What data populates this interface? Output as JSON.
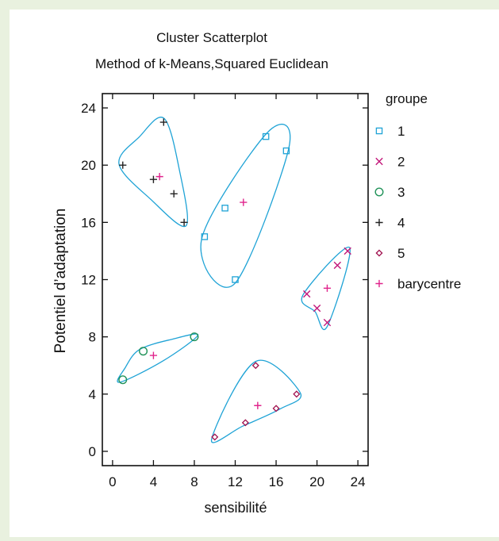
{
  "chart_data": {
    "type": "scatter",
    "title": "Cluster Scatterplot",
    "subtitle": "Method of k-Means,Squared Euclidean",
    "xlabel": "sensibilité",
    "ylabel": "Potentiel d’adaptation",
    "xlim": [
      -1,
      25
    ],
    "ylim": [
      -1,
      25
    ],
    "x_ticks": [
      "0",
      "4",
      "8",
      "12",
      "16",
      "20",
      "24"
    ],
    "y_ticks": [
      "0",
      "4",
      "8",
      "12",
      "16",
      "20",
      "24"
    ],
    "grid": false,
    "legend": {
      "title": "groupe",
      "placement": "right",
      "entries": [
        {
          "label": "1",
          "marker": "square",
          "color": "#1fa3d6"
        },
        {
          "label": "2",
          "marker": "x",
          "color": "#c2177a"
        },
        {
          "label": "3",
          "marker": "circle",
          "color": "#22935a"
        },
        {
          "label": "4",
          "marker": "plus",
          "color": "#222222"
        },
        {
          "label": "5",
          "marker": "diamond",
          "color": "#a0104e"
        },
        {
          "label": "barycentre",
          "marker": "plus",
          "color": "#e0248c"
        }
      ]
    },
    "series": [
      {
        "name": "1",
        "points": [
          [
            9,
            15
          ],
          [
            11,
            17
          ],
          [
            12,
            12
          ],
          [
            15,
            22
          ],
          [
            17,
            21
          ]
        ]
      },
      {
        "name": "2",
        "points": [
          [
            19,
            11
          ],
          [
            20,
            10
          ],
          [
            21,
            9
          ],
          [
            22,
            13
          ],
          [
            23,
            14
          ]
        ]
      },
      {
        "name": "3",
        "points": [
          [
            1,
            5
          ],
          [
            3,
            7
          ],
          [
            8,
            8
          ]
        ]
      },
      {
        "name": "4",
        "points": [
          [
            1,
            20
          ],
          [
            4,
            19
          ],
          [
            5,
            23
          ],
          [
            6,
            18
          ],
          [
            7,
            16
          ]
        ]
      },
      {
        "name": "5",
        "points": [
          [
            10,
            1
          ],
          [
            13,
            2
          ],
          [
            14,
            6
          ],
          [
            16,
            3
          ],
          [
            18,
            4
          ]
        ]
      },
      {
        "name": "barycentre",
        "points": [
          [
            4.6,
            19.2
          ],
          [
            12.8,
            17.4
          ],
          [
            21,
            11.4
          ],
          [
            4,
            6.7
          ],
          [
            14.2,
            3.2
          ]
        ]
      }
    ],
    "ellipse_color": "#1fa3d6"
  }
}
